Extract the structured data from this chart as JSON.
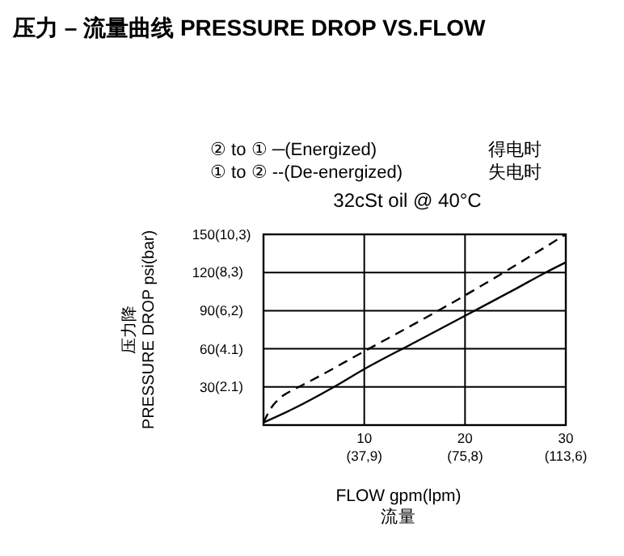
{
  "chart_data": {
    "type": "line",
    "title": "压力 – 流量曲线 PRESSURE DROP VS.FLOW",
    "xlabel": "FLOW gpm(lpm)\n流量",
    "ylabel": "压力降\nPRESSURE DROP psi(bar)",
    "annotations": [
      "② to ① ─(Energized)",
      "得电时",
      "① to ② --(De-energized)",
      "失电时",
      "32cSt oil @ 40°C"
    ],
    "xlim": [
      0,
      30
    ],
    "ylim": [
      0,
      150
    ],
    "xticks": [
      10,
      20,
      30
    ],
    "x2lim": [
      0,
      113.6
    ],
    "x2ticks": [
      {
        "value": 37.9,
        "label": "(37,9)"
      },
      {
        "value": 75.8,
        "label": "(75,8)"
      },
      {
        "value": 113.6,
        "label": "(113,6)"
      }
    ],
    "yticks": [
      30,
      60,
      90,
      120,
      150
    ],
    "y2lim": [
      0,
      10.3
    ],
    "y2ticks": [
      {
        "value": 2.1,
        "label": "(2.1)"
      },
      {
        "value": 4.1,
        "label": "(4.1)"
      },
      {
        "value": 6.2,
        "label": "(6,2)"
      },
      {
        "value": 8.3,
        "label": "(8,3)"
      },
      {
        "value": 10.3,
        "label": "(10,3)"
      }
    ],
    "grid": true,
    "series": [
      {
        "color": "#000000",
        "line_style": "solid",
        "x": [
          0,
          3,
          7,
          10,
          15,
          20,
          25,
          28,
          30
        ],
        "values": [
          2,
          13,
          30,
          44,
          65,
          86,
          107,
          120,
          128
        ]
      },
      {
        "color": "#000000",
        "line_style": "dashed",
        "x": [
          0,
          0.8,
          1.6,
          3,
          3.75,
          10,
          20,
          30
        ],
        "values": [
          2,
          14,
          21,
          28,
          31,
          58,
          102,
          150
        ]
      }
    ]
  }
}
